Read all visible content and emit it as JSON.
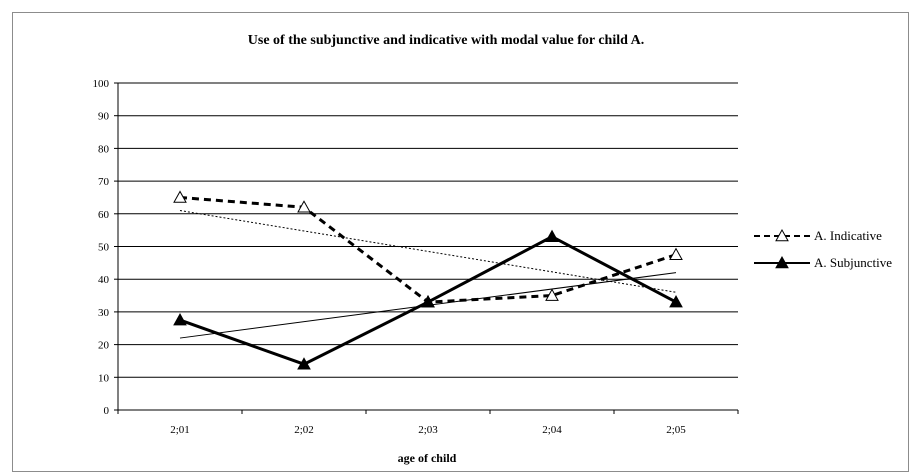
{
  "chart_data": {
    "type": "line",
    "title": "Use of the subjunctive and indicative with modal  value for child A.",
    "xlabel": "age of child",
    "ylabel": "",
    "categories": [
      "2;01",
      "2;02",
      "2;03",
      "2;04",
      "2;05"
    ],
    "ylim": [
      0,
      100
    ],
    "yticks": [
      "0",
      "10",
      "20",
      "30",
      "40",
      "50",
      "60",
      "70",
      "80",
      "90",
      "100"
    ],
    "grid": true,
    "legend_position": "right",
    "series": [
      {
        "name": "A. Indicative",
        "values": [
          65,
          62,
          33,
          35,
          47.5
        ],
        "line_style": "dashed",
        "marker": "open-triangle",
        "trendline": [
          61,
          36
        ]
      },
      {
        "name": "A. Subjunctive",
        "values": [
          27.5,
          14,
          33,
          53,
          33
        ],
        "line_style": "solid",
        "marker": "filled-triangle",
        "trendline": [
          22,
          42
        ]
      }
    ],
    "colors": {
      "lines": "#000000",
      "grid": "#000000",
      "frame": "#8c8c8c"
    }
  }
}
